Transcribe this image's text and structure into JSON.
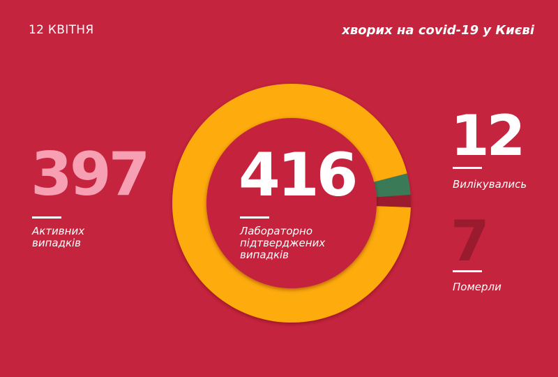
{
  "header": {
    "date": "12 КВІТНЯ",
    "headline": "хворих на covid-19 у Києві"
  },
  "stats": {
    "active": {
      "value": "397",
      "label_line1": "Активних",
      "label_line2": "випадків",
      "color": "#f7a0b3"
    },
    "total": {
      "value": "416",
      "label_line1": "Лабораторно",
      "label_line2": "підтверджених",
      "label_line3": "випадків",
      "color": "#ffffff"
    },
    "recovered": {
      "value": "12",
      "label": "Вилікувались",
      "color": "#ffffff"
    },
    "deaths": {
      "value": "7",
      "label": "Померли",
      "color": "#9b1b2e"
    }
  },
  "colors": {
    "background": "#c5243e",
    "active_segment": "#fdab08",
    "recovered_segment": "#3b7a57",
    "deaths_segment": "#9b1b2e"
  },
  "chart_data": {
    "type": "pie",
    "variant": "donut",
    "title": "хворих на covid-19 у Києві",
    "total": 416,
    "categories": [
      "Активних випадків",
      "Вилікувались",
      "Померли"
    ],
    "values": [
      397,
      12,
      7
    ],
    "colors": [
      "#fdab08",
      "#3b7a57",
      "#9b1b2e"
    ]
  }
}
